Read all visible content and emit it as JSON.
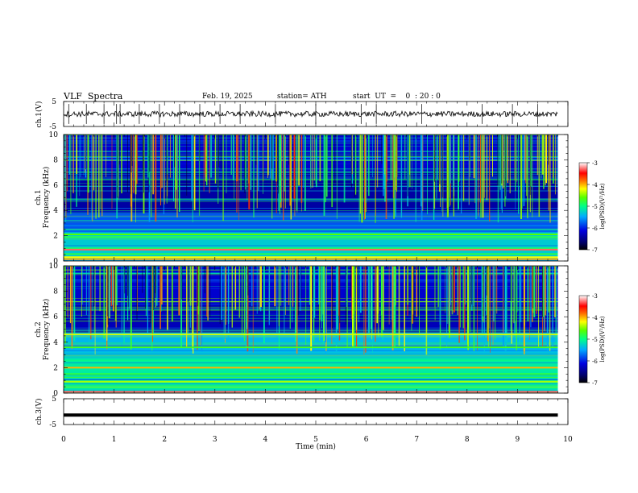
{
  "header": {
    "title": "VLF  Spectra",
    "date": "Feb. 19, 2025",
    "station": "station= ATH",
    "start": "start  UT  =    0  : 20 : 0"
  },
  "chart_data": [
    {
      "type": "line",
      "panel": "ch1-waveform",
      "ylabel": "ch.1(V)",
      "ylim": [
        -5,
        5
      ],
      "yticks": [
        "5",
        "-5"
      ],
      "xlim": [
        0,
        10
      ],
      "data_end_min": 9.8,
      "baseline_v": 0,
      "spike_times_min": [
        0.1,
        0.45,
        0.8,
        1.05,
        1.12,
        1.5,
        1.9,
        2.3,
        2.7,
        3.1,
        3.5,
        4.2,
        5.0,
        5.9,
        6.2,
        7.1,
        8.3,
        8.9,
        9.4
      ]
    },
    {
      "type": "heatmap",
      "panel": "ch1-spectrogram",
      "ylabel": "ch.1 Frequency (kHz)",
      "ylim": [
        0,
        10
      ],
      "yticks": [
        "0",
        "2",
        "4",
        "6",
        "8",
        "10"
      ],
      "xlim": [
        0,
        10
      ],
      "data_end_min": 9.8,
      "colorbar": {
        "label": "log(PSD)(V²/Hz)",
        "range": [
          -7,
          -3
        ],
        "ticks": [
          "-3",
          "-4",
          "-5",
          "-6",
          "-7"
        ]
      },
      "bands_khz": [
        {
          "freq": 2.1,
          "level": -4.6
        },
        {
          "freq": 1.9,
          "level": -4.8
        },
        {
          "freq": 1.0,
          "level": -4.9
        },
        {
          "freq": 0.9,
          "level": -3.3
        },
        {
          "freq": 0.55,
          "level": -4.8
        },
        {
          "freq": 0.3,
          "level": -4.2
        },
        {
          "freq": 0.15,
          "level": -4.0
        }
      ]
    },
    {
      "type": "heatmap",
      "panel": "ch2-spectrogram",
      "ylabel": "ch.2 Frequency (kHz)",
      "ylim": [
        0,
        10
      ],
      "yticks": [
        "0",
        "2",
        "4",
        "6",
        "8",
        "10"
      ],
      "xlim": [
        0,
        10
      ],
      "data_end_min": 9.8,
      "colorbar": {
        "label": "log(PSD)(V²/Hz)",
        "range": [
          -7,
          -3
        ],
        "ticks": [
          "-3",
          "-4",
          "-5",
          "-6",
          "-7"
        ]
      },
      "bands_khz": [
        {
          "freq": 4.6,
          "level": -4.3
        },
        {
          "freq": 3.6,
          "level": -4.7
        },
        {
          "freq": 2.0,
          "level": -4.0
        },
        {
          "freq": 1.5,
          "level": -4.8
        },
        {
          "freq": 0.9,
          "level": -4.4
        },
        {
          "freq": 0.1,
          "level": -3.3
        }
      ]
    },
    {
      "type": "line",
      "panel": "ch3-waveform",
      "ylabel": "ch.3(V)",
      "ylim": [
        -5,
        5
      ],
      "yticks": [
        "5",
        "-5"
      ],
      "xlim": [
        0,
        10
      ],
      "data_end_min": 9.8,
      "baseline_v": -1.3
    }
  ],
  "xaxis": {
    "label": "Time (min)",
    "ticks": [
      "0",
      "1",
      "2",
      "3",
      "4",
      "5",
      "6",
      "7",
      "8",
      "9",
      "10"
    ]
  }
}
